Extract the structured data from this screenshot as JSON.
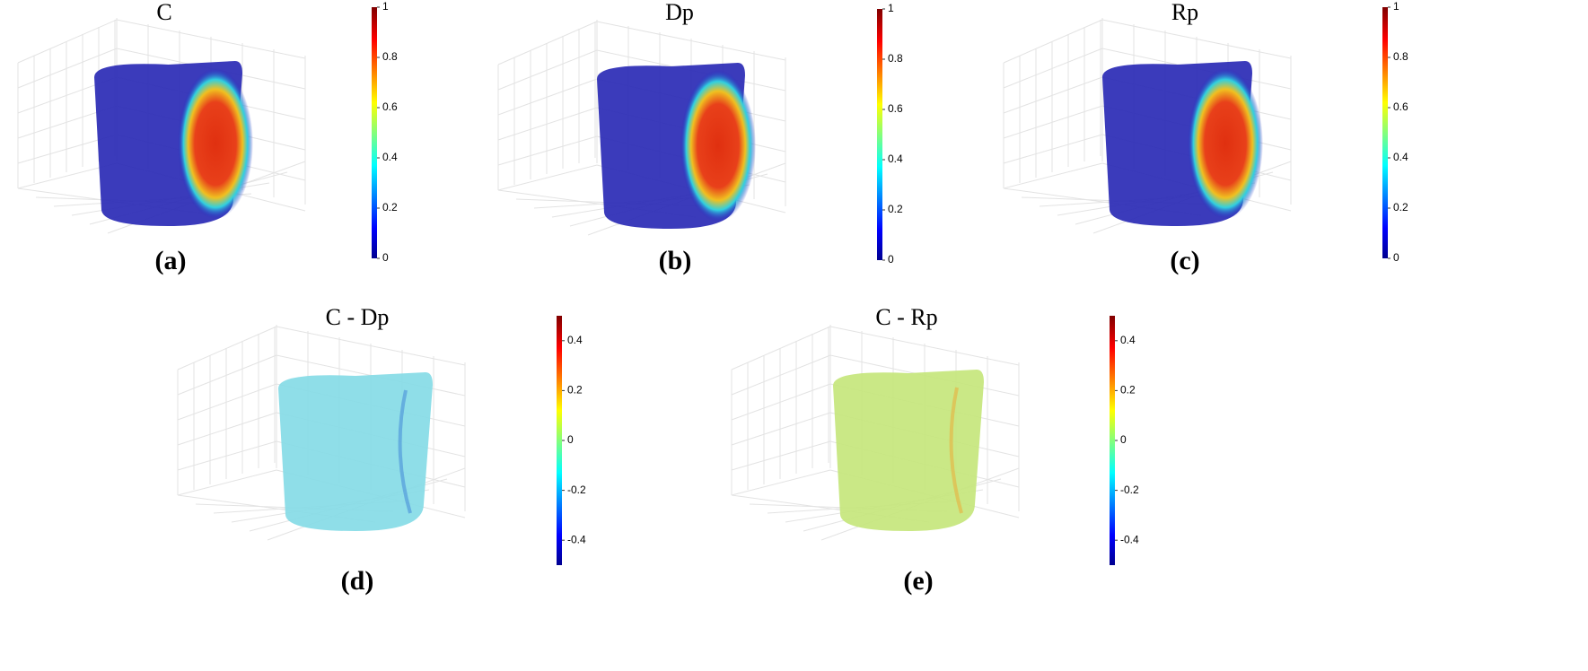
{
  "panels": [
    {
      "title": "C",
      "label": "(a)",
      "colorbar": {
        "lim": [
          0,
          1
        ],
        "ticks": [
          0,
          0.2,
          0.4,
          0.6,
          0.8,
          1
        ]
      }
    },
    {
      "title": "Dp",
      "label": "(b)",
      "colorbar": {
        "lim": [
          0,
          1
        ],
        "ticks": [
          0,
          0.2,
          0.4,
          0.6,
          0.8,
          1
        ]
      }
    },
    {
      "title": "Rp",
      "label": "(c)",
      "colorbar": {
        "lim": [
          0,
          1
        ],
        "ticks": [
          0,
          0.2,
          0.4,
          0.6,
          0.8,
          1
        ]
      }
    },
    {
      "title": "C - Dp",
      "label": "(d)",
      "colorbar": {
        "lim": [
          -0.5,
          0.5
        ],
        "ticks": [
          -0.4,
          -0.2,
          0,
          0.2,
          0.4
        ]
      }
    },
    {
      "title": "C - Rp",
      "label": "(e)",
      "colorbar": {
        "lim": [
          -0.5,
          0.5
        ],
        "ticks": [
          -0.4,
          -0.2,
          0,
          0.2,
          0.4
        ]
      }
    }
  ]
}
